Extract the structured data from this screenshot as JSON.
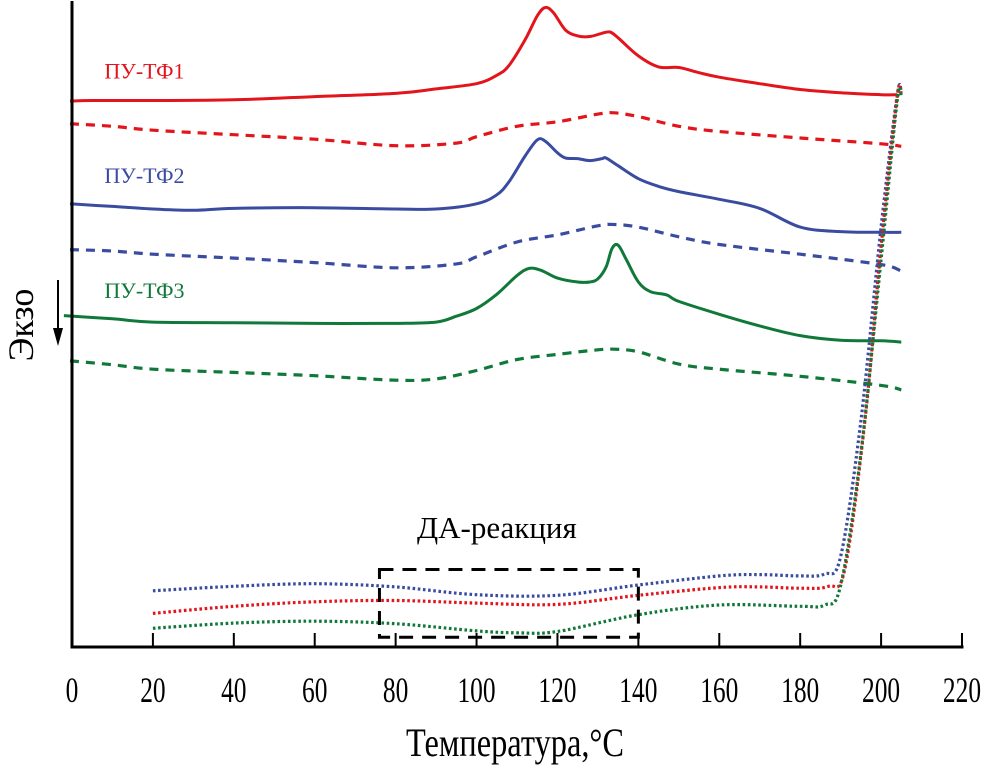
{
  "chart_data": {
    "type": "line",
    "title": "",
    "xlabel": "Температура,°C",
    "ylabel": "Экзо",
    "ylabel_arrow": "down",
    "xlim": [
      0,
      220
    ],
    "ylim": [
      0,
      100
    ],
    "y_units": "arbitrary (heat flow, offset curves)",
    "xticks": [
      0,
      20,
      40,
      60,
      80,
      100,
      120,
      140,
      160,
      180,
      200,
      220
    ],
    "grid": false,
    "annotation": {
      "text": "ДА-реакция",
      "box_x": [
        76,
        140
      ],
      "box_y": [
        1.5,
        12
      ]
    },
    "series": [
      {
        "name": "ПУ-ТФ1",
        "label": "ПУ-ТФ1",
        "color": "#e3151c",
        "style": "solid",
        "points": [
          [
            -0.5,
            84.5
          ],
          [
            5,
            84.6
          ],
          [
            20,
            84.6
          ],
          [
            40,
            84.7
          ],
          [
            60,
            85.2
          ],
          [
            80,
            85.7
          ],
          [
            90,
            86.4
          ],
          [
            100,
            87.2
          ],
          [
            105,
            88.5
          ],
          [
            108,
            90
          ],
          [
            112,
            94
          ],
          [
            115,
            97.7
          ],
          [
            117,
            99.0
          ],
          [
            119,
            98.2
          ],
          [
            122,
            95.5
          ],
          [
            125,
            94.6
          ],
          [
            128,
            94.5
          ],
          [
            131,
            95.0
          ],
          [
            133,
            95.2
          ],
          [
            135,
            94.3
          ],
          [
            140,
            91.5
          ],
          [
            145,
            89.8
          ],
          [
            150,
            89.7
          ],
          [
            155,
            88.9
          ],
          [
            160,
            88.2
          ],
          [
            170,
            87.2
          ],
          [
            180,
            86.3
          ],
          [
            190,
            85.8
          ],
          [
            200,
            85.5
          ],
          [
            204,
            85.5
          ]
        ],
        "label_pos": [
          8,
          88
        ]
      },
      {
        "name": "ПУ-ТФ1 (dashed)",
        "color": "#e3151c",
        "style": "dashed",
        "points": [
          [
            -0.5,
            81.0
          ],
          [
            10,
            80.6
          ],
          [
            20,
            80.0
          ],
          [
            40,
            79.3
          ],
          [
            60,
            78.6
          ],
          [
            80,
            77.6
          ],
          [
            95,
            78.0
          ],
          [
            100,
            79.0
          ],
          [
            110,
            80.6
          ],
          [
            120,
            81.3
          ],
          [
            130,
            82.5
          ],
          [
            134,
            82.7
          ],
          [
            140,
            82.1
          ],
          [
            150,
            80.6
          ],
          [
            160,
            79.8
          ],
          [
            180,
            78.8
          ],
          [
            200,
            77.9
          ],
          [
            205,
            77.5
          ]
        ]
      },
      {
        "name": "ПУ-ТФ2",
        "label": "ПУ-ТФ2",
        "color": "#3a4ca0",
        "style": "solid",
        "points": [
          [
            -0.5,
            68.6
          ],
          [
            10,
            68.2
          ],
          [
            20,
            67.8
          ],
          [
            30,
            67.6
          ],
          [
            40,
            67.9
          ],
          [
            60,
            68.0
          ],
          [
            80,
            67.8
          ],
          [
            90,
            67.8
          ],
          [
            100,
            68.6
          ],
          [
            105,
            70.0
          ],
          [
            108,
            72.0
          ],
          [
            112,
            76.0
          ],
          [
            115,
            78.5
          ],
          [
            117,
            78.3
          ],
          [
            120,
            76.5
          ],
          [
            122,
            75.7
          ],
          [
            125,
            75.6
          ],
          [
            128,
            75.3
          ],
          [
            131,
            75.6
          ],
          [
            132,
            75.7
          ],
          [
            135,
            74.5
          ],
          [
            140,
            72.5
          ],
          [
            145,
            71.3
          ],
          [
            150,
            70.5
          ],
          [
            160,
            69.3
          ],
          [
            170,
            67.9
          ],
          [
            180,
            65.0
          ],
          [
            190,
            64.3
          ],
          [
            200,
            64.2
          ],
          [
            205,
            64.2
          ]
        ],
        "label_pos": [
          8,
          71.8
        ]
      },
      {
        "name": "ПУ-ТФ2 (dashed)",
        "color": "#3a4ca0",
        "style": "dashed",
        "points": [
          [
            -0.5,
            61.5
          ],
          [
            10,
            61.3
          ],
          [
            20,
            60.8
          ],
          [
            40,
            60.2
          ],
          [
            60,
            59.5
          ],
          [
            80,
            58.7
          ],
          [
            95,
            59.3
          ],
          [
            100,
            60.4
          ],
          [
            110,
            62.7
          ],
          [
            120,
            63.8
          ],
          [
            130,
            65.2
          ],
          [
            134,
            65.4
          ],
          [
            140,
            65.0
          ],
          [
            150,
            63.5
          ],
          [
            160,
            62.3
          ],
          [
            180,
            60.8
          ],
          [
            200,
            59.2
          ],
          [
            205,
            58.2
          ]
        ]
      },
      {
        "name": "ПУ-ТФ3",
        "label": "ПУ-ТФ3",
        "color": "#10793a",
        "style": "solid",
        "points": [
          [
            -2,
            51.3
          ],
          [
            10,
            50.8
          ],
          [
            20,
            50.3
          ],
          [
            40,
            50.2
          ],
          [
            60,
            50.1
          ],
          [
            80,
            50.1
          ],
          [
            90,
            50.3
          ],
          [
            95,
            51.2
          ],
          [
            100,
            52.4
          ],
          [
            105,
            54.6
          ],
          [
            110,
            57.5
          ],
          [
            113,
            58.6
          ],
          [
            116,
            58.3
          ],
          [
            120,
            57.1
          ],
          [
            125,
            56.5
          ],
          [
            128,
            56.5
          ],
          [
            130,
            57.0
          ],
          [
            132,
            58.8
          ],
          [
            133.5,
            61.7
          ],
          [
            135,
            62.2
          ],
          [
            137,
            60.0
          ],
          [
            140,
            56.5
          ],
          [
            143,
            55.0
          ],
          [
            147,
            54.5
          ],
          [
            150,
            53.5
          ],
          [
            160,
            51.5
          ],
          [
            170,
            49.7
          ],
          [
            180,
            48.2
          ],
          [
            190,
            47.5
          ],
          [
            200,
            47.4
          ],
          [
            205,
            47.2
          ]
        ],
        "label_pos": [
          8,
          54
        ]
      },
      {
        "name": "ПУ-ТФ3 (dashed)",
        "color": "#10793a",
        "style": "dashed",
        "points": [
          [
            -0.5,
            44.3
          ],
          [
            10,
            43.7
          ],
          [
            20,
            43.0
          ],
          [
            40,
            42.5
          ],
          [
            60,
            42.0
          ],
          [
            80,
            41.3
          ],
          [
            90,
            41.5
          ],
          [
            100,
            42.8
          ],
          [
            110,
            44.5
          ],
          [
            120,
            45.3
          ],
          [
            130,
            46.0
          ],
          [
            134,
            46.1
          ],
          [
            140,
            45.7
          ],
          [
            150,
            43.8
          ],
          [
            160,
            43.0
          ],
          [
            180,
            41.9
          ],
          [
            200,
            40.5
          ],
          [
            205,
            39.8
          ]
        ]
      },
      {
        "name": "blue dotted",
        "color": "#3a4ca0",
        "style": "dotted",
        "points": [
          [
            20,
            8.7
          ],
          [
            40,
            9.4
          ],
          [
            60,
            9.8
          ],
          [
            80,
            9.3
          ],
          [
            100,
            8.1
          ],
          [
            120,
            8.0
          ],
          [
            140,
            9.6
          ],
          [
            160,
            11.0
          ],
          [
            170,
            11.2
          ],
          [
            180,
            11.0
          ],
          [
            186,
            11.3
          ],
          [
            190,
            14
          ],
          [
            195,
            35
          ],
          [
            200,
            65
          ],
          [
            204,
            85.5
          ],
          [
            205,
            85.7
          ]
        ]
      },
      {
        "name": "red dotted",
        "color": "#e3151c",
        "style": "dotted",
        "points": [
          [
            20,
            5.2
          ],
          [
            40,
            6.3
          ],
          [
            60,
            7.0
          ],
          [
            80,
            7.2
          ],
          [
            100,
            6.8
          ],
          [
            120,
            6.6
          ],
          [
            140,
            8.0
          ],
          [
            160,
            9.2
          ],
          [
            170,
            9.3
          ],
          [
            180,
            9.1
          ],
          [
            187,
            9.4
          ],
          [
            191,
            12
          ],
          [
            196,
            35
          ],
          [
            200,
            62
          ],
          [
            204,
            85.3
          ],
          [
            205,
            85.5
          ]
        ]
      },
      {
        "name": "green dotted",
        "color": "#10793a",
        "style": "dotted",
        "points": [
          [
            20,
            2.9
          ],
          [
            40,
            3.7
          ],
          [
            60,
            4.0
          ],
          [
            80,
            3.6
          ],
          [
            100,
            2.5
          ],
          [
            110,
            2.2
          ],
          [
            120,
            2.4
          ],
          [
            140,
            5.0
          ],
          [
            160,
            6.5
          ],
          [
            180,
            6.3
          ],
          [
            186,
            6.5
          ],
          [
            190,
            9.5
          ],
          [
            195,
            30
          ],
          [
            200,
            60
          ],
          [
            204,
            84.7
          ],
          [
            205,
            85.2
          ]
        ]
      }
    ]
  }
}
